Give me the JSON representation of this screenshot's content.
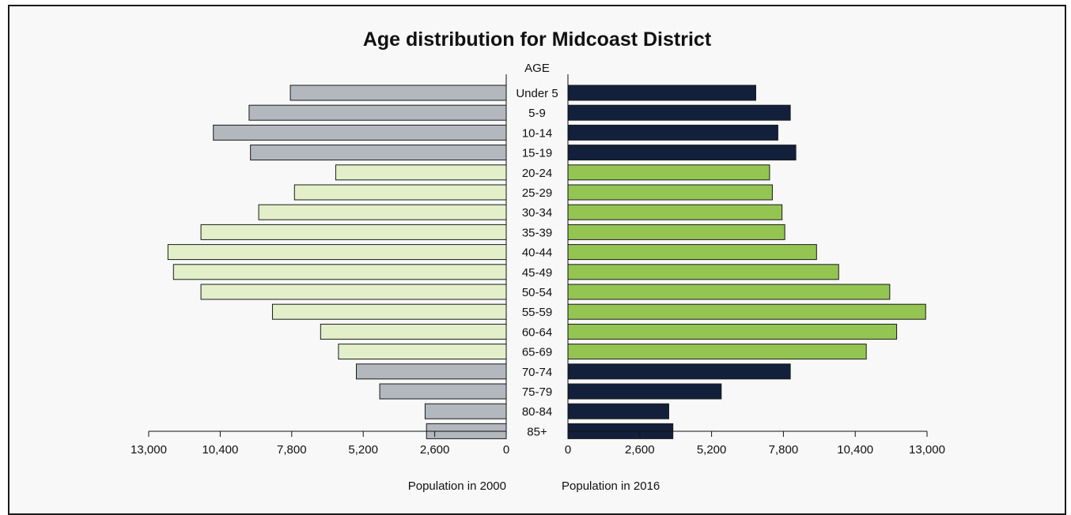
{
  "chart_data": {
    "type": "bar",
    "title": "Age distribution for Midcoast District",
    "category_axis_label": "AGE",
    "categories": [
      "Under 5",
      "5-9",
      "10-14",
      "15-19",
      "20-24",
      "25-29",
      "30-34",
      "35-39",
      "40-44",
      "45-49",
      "50-54",
      "55-59",
      "60-64",
      "65-69",
      "70-74",
      "75-79",
      "80-84",
      "85+"
    ],
    "left": {
      "xlabel": "Population in 2000",
      "xlim": [
        0,
        13000
      ],
      "ticks": [
        "13,000",
        "10,400",
        "7,800",
        "5,200",
        "2,600",
        "0"
      ],
      "values": [
        7850,
        9350,
        10650,
        9300,
        6200,
        7700,
        9000,
        11100,
        12300,
        12100,
        11100,
        8500,
        6750,
        6100,
        5450,
        4600,
        2950,
        2900
      ]
    },
    "right": {
      "xlabel": "Population in 2016",
      "xlim": [
        0,
        13000
      ],
      "ticks": [
        "0",
        "2,600",
        "5,200",
        "7,800",
        "10,400",
        "13,000"
      ],
      "values": [
        6800,
        8050,
        7600,
        8250,
        7300,
        7400,
        7750,
        7850,
        9000,
        9800,
        11650,
        12950,
        11900,
        10800,
        8050,
        5550,
        3650,
        3800
      ]
    },
    "colors": {
      "age_0_19": "#b3b8bf",
      "age_20_69_2000": "#e2efc8",
      "age_0_19_2016": "#13203b",
      "age_20_69_2016": "#94c552"
    }
  }
}
